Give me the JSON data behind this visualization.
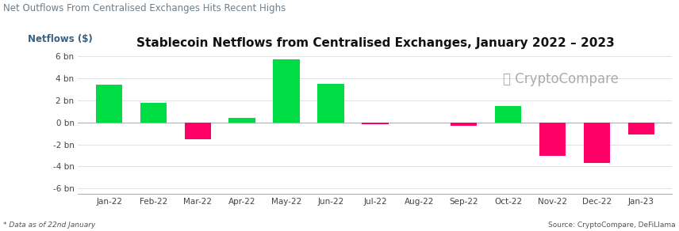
{
  "title": "Stablecoin Netflows from Centralised Exchanges, January 2022 – 2023",
  "suptitle": "Net Outflows From Centralised Exchanges Hits Recent Highs",
  "ylabel": "Netflows ($)",
  "categories": [
    "Jan-22",
    "Feb-22",
    "Mar-22",
    "Apr-22",
    "May-22",
    "Jun-22",
    "Jul-22",
    "Aug-22",
    "Sep-22",
    "Oct-22",
    "Nov-22",
    "Dec-22",
    "Jan-23"
  ],
  "values": [
    3.4,
    1.75,
    -1.5,
    0.4,
    5.7,
    3.5,
    -0.18,
    -0.05,
    -0.3,
    1.5,
    -3.0,
    -3.7,
    -1.1
  ],
  "bar_colors_positive": "#00dd44",
  "bar_colors_negative": "#ff0066",
  "ylim": [
    -6.5,
    6.5
  ],
  "yticks": [
    -6,
    -4,
    -2,
    0,
    2,
    4,
    6
  ],
  "ytick_labels": [
    "-6 bn",
    "-4 bn",
    "-2 bn",
    "0 bn",
    "2 bn",
    "4 bn",
    "6 bn"
  ],
  "background_color": "#ffffff",
  "title_fontsize": 11,
  "suptitle_fontsize": 8.5,
  "ylabel_fontsize": 8.5,
  "watermark_text": "CryptoCompare",
  "footnote_left": "* Data as of 22nd January",
  "footnote_right": "Source: CryptoCompare, DeFiLlama",
  "grid_color": "#dddddd",
  "suptitle_color": "#6a7f8e",
  "title_color": "#111111",
  "ytick_color": "#444444",
  "xtick_color": "#444444",
  "ylabel_color": "#3a6080",
  "watermark_color": "#aaaaaa"
}
